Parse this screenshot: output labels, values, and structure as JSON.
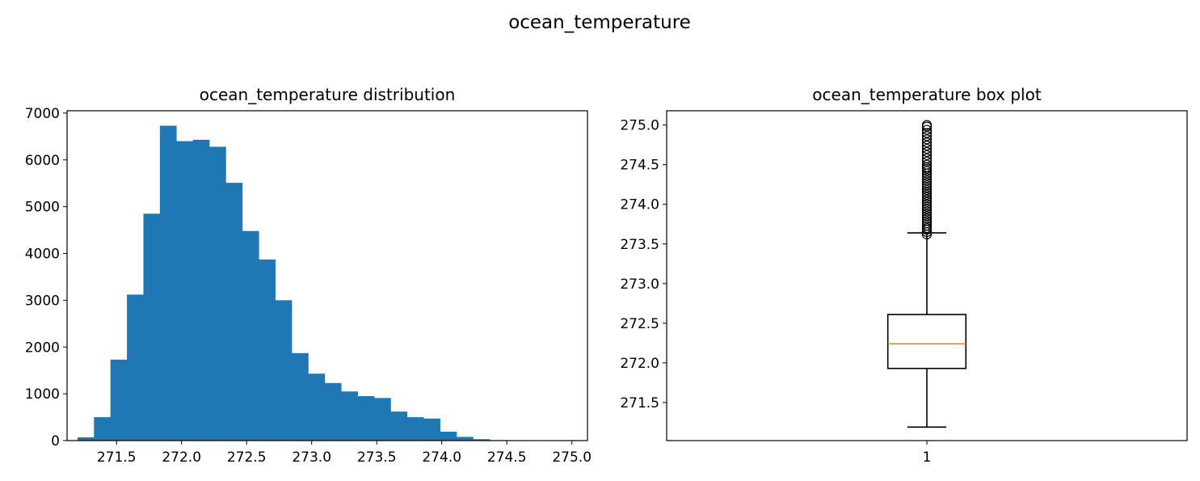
{
  "figure": {
    "suptitle": "ocean_temperature"
  },
  "chart_data": [
    {
      "type": "bar",
      "title": "ocean_temperature distribution",
      "xlabel": "",
      "ylabel": "",
      "xlim": [
        271.12,
        275.12
      ],
      "ylim": [
        0,
        7050
      ],
      "x_ticks": [
        271.5,
        272.0,
        272.5,
        273.0,
        273.5,
        274.0,
        274.5,
        275.0
      ],
      "x_tick_labels": [
        "271.5",
        "272.0",
        "272.5",
        "273.0",
        "273.5",
        "274.0",
        "274.5",
        "275.0"
      ],
      "y_ticks": [
        0,
        1000,
        2000,
        3000,
        4000,
        5000,
        6000,
        7000
      ],
      "y_tick_labels": [
        "0",
        "1000",
        "2000",
        "3000",
        "4000",
        "5000",
        "6000",
        "7000"
      ],
      "bin_start": 271.2,
      "bin_width": 0.1267,
      "values": [
        70,
        500,
        1730,
        3120,
        4850,
        6730,
        6400,
        6430,
        6280,
        5510,
        4480,
        3870,
        3000,
        1870,
        1430,
        1230,
        1050,
        950,
        910,
        620,
        500,
        470,
        190,
        80,
        30,
        10,
        5,
        5,
        5,
        5
      ],
      "color": "#1f77b4"
    },
    {
      "type": "box",
      "title": "ocean_temperature box plot",
      "xlim": [
        0.5,
        1.5
      ],
      "ylim": [
        271.02,
        275.18
      ],
      "x_ticks": [
        1
      ],
      "x_tick_labels": [
        "1"
      ],
      "y_ticks": [
        271.5,
        272.0,
        272.5,
        273.0,
        273.5,
        274.0,
        274.5,
        275.0
      ],
      "y_tick_labels": [
        "271.5",
        "272.0",
        "272.5",
        "273.0",
        "273.5",
        "274.0",
        "274.5",
        "275.0"
      ],
      "whisker_low": 271.19,
      "q1": 271.93,
      "median": 272.24,
      "q3": 272.61,
      "whisker_high": 273.64,
      "outliers": [
        273.62,
        273.65,
        273.68,
        273.7,
        273.73,
        273.76,
        273.79,
        273.82,
        273.85,
        273.88,
        273.91,
        273.94,
        273.97,
        274.0,
        274.03,
        274.06,
        274.09,
        274.12,
        274.15,
        274.18,
        274.21,
        274.24,
        274.27,
        274.3,
        274.33,
        274.36,
        274.39,
        274.42,
        274.45,
        274.47,
        274.5,
        274.54,
        274.58,
        274.62,
        274.66,
        274.7,
        274.74,
        274.78,
        274.82,
        274.86,
        274.9,
        274.94,
        274.98,
        275.0
      ],
      "box_color": "#000000",
      "median_color": "#ff7f0e"
    }
  ]
}
